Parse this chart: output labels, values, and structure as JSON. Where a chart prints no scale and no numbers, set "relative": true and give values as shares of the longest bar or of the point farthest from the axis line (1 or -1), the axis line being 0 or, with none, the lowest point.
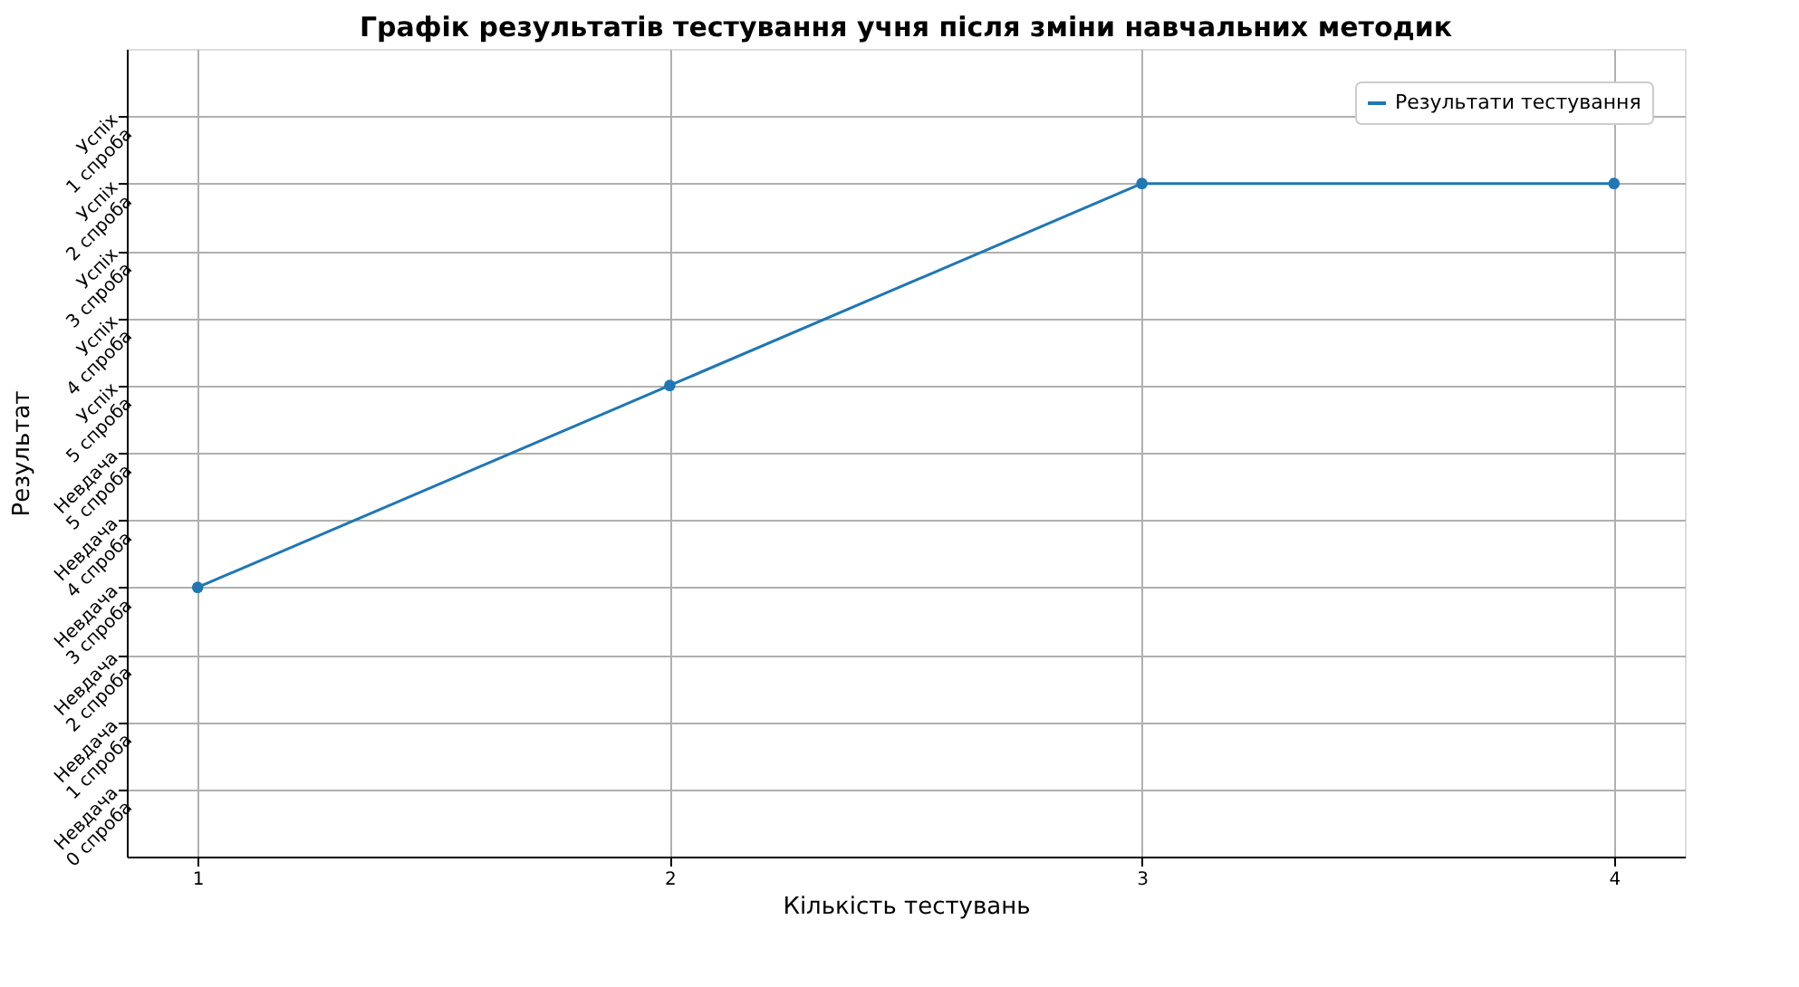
{
  "chart_data": {
    "type": "line",
    "title": "Графік результатів тестування учня після зміни навчальних методик",
    "xlabel": "Кількість тестувань",
    "ylabel": "Результат",
    "x": [
      1,
      2,
      3,
      4
    ],
    "relative": true,
    "series": [
      {
        "name": "Результати тестування",
        "color": "#1f77b4",
        "values": [
          0.4,
          0.7,
          1,
          1
        ]
      }
    ],
    "annotations": [
      "Невдача\n0 спроба",
      "Невдача\n1 спроба",
      "Невдача\n2 спроба",
      "Невдача\n3 спроба",
      "Невдача\n4 спроба",
      "Невдача\n5 спроба",
      "Успіх\n5 спроба",
      "Успіх\n4 спроба",
      "Успіх\n3 спроба",
      "Успіх\n2 спроба",
      "Успіх\n1 спроба"
    ],
    "xlim": [
      0.85,
      4.15
    ],
    "xticks": [
      1,
      2,
      3,
      4
    ],
    "grid": true,
    "legend": "top right",
    "marker": "circle",
    "line_style": "solid"
  }
}
